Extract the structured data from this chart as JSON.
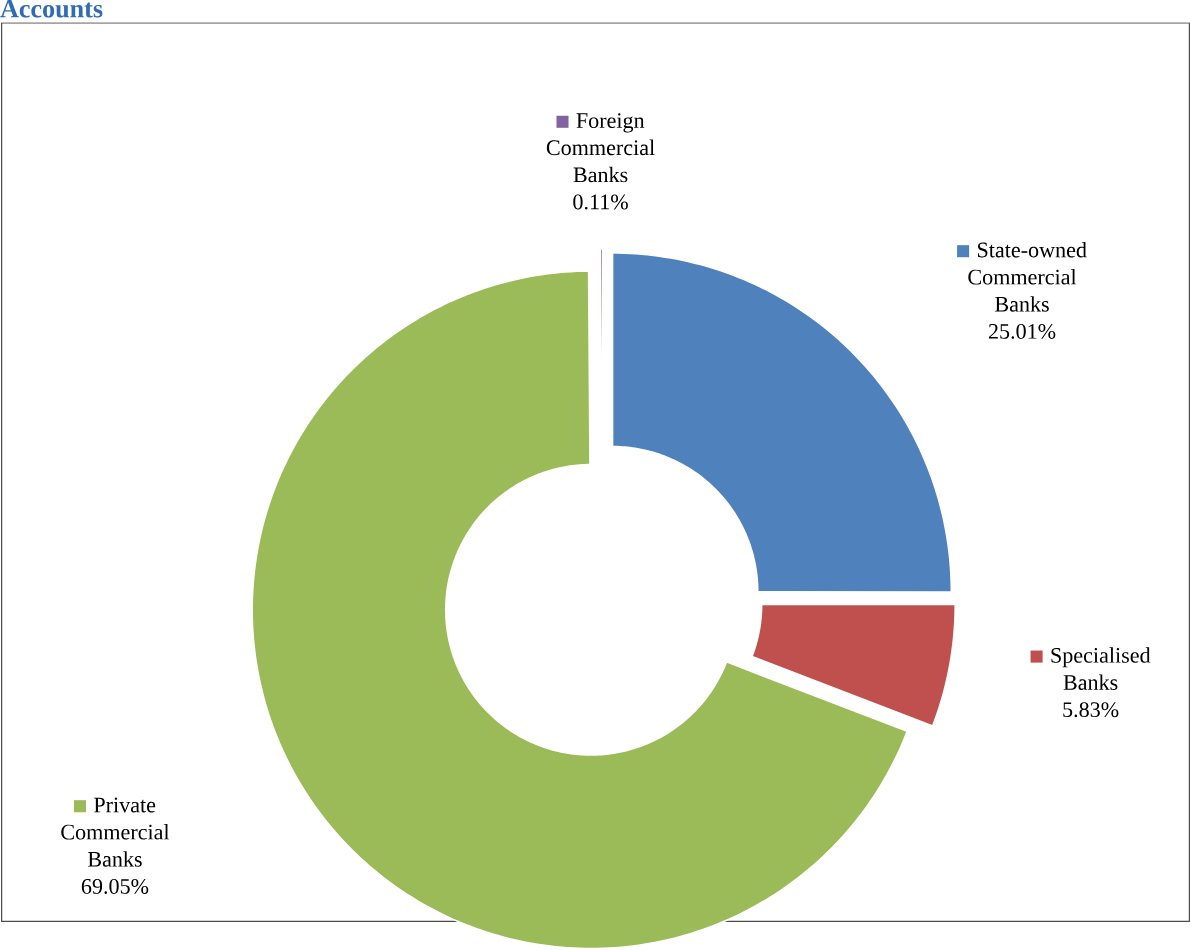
{
  "chart_data": {
    "type": "donut",
    "title": "Accounts",
    "categories": [
      "State-owned Commercial Banks",
      "Specialised Banks",
      "Private Commercial Banks",
      "Foreign Commercial Banks"
    ],
    "values": [
      25.01,
      5.83,
      69.05,
      0.11
    ],
    "colors": [
      "#4f81bd",
      "#c0504d",
      "#9bbb59",
      "#8064a2"
    ],
    "value_labels": [
      "25.01%",
      "5.83%",
      "69.05%",
      "0.11%"
    ],
    "legend": "right"
  }
}
